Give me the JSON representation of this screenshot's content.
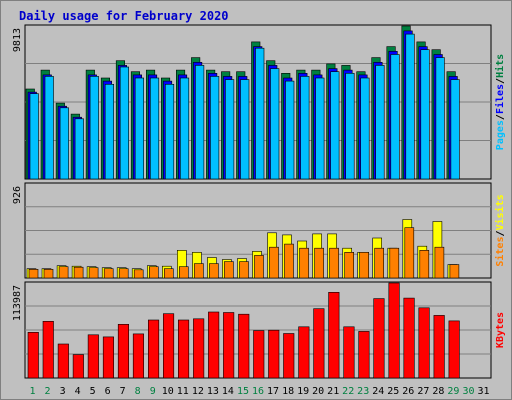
{
  "chart_data": {
    "type": "bar",
    "title": "Daily usage for February 2020",
    "days": [
      "1",
      "2",
      "3",
      "4",
      "5",
      "6",
      "7",
      "8",
      "9",
      "10",
      "11",
      "12",
      "13",
      "14",
      "15",
      "16",
      "17",
      "18",
      "19",
      "20",
      "21",
      "22",
      "23",
      "24",
      "25",
      "26",
      "27",
      "28",
      "29",
      "30",
      "31"
    ],
    "weekend_days": [
      "1",
      "2",
      "8",
      "9",
      "15",
      "16",
      "22",
      "23",
      "29",
      "30"
    ],
    "colors": {
      "hits": "#008040",
      "files": "#0000ff",
      "pages": "#00c0ff",
      "visits": "#ffff00",
      "sites": "#ff8000",
      "kbytes": "#ff0000",
      "weekday_label": "#000000",
      "weekend_label": "#008040",
      "title": "#0000cc"
    },
    "panels": [
      {
        "id": "top",
        "ymax_label": "9813",
        "ymax": 9813,
        "series": [
          {
            "name": "Hits",
            "color": "#008040",
            "values": [
              5800,
              7000,
              4900,
              4200,
              7000,
              6500,
              7600,
              6900,
              7000,
              6500,
              7000,
              7800,
              7000,
              6900,
              6900,
              8800,
              7600,
              6800,
              7000,
              7000,
              7400,
              7300,
              6900,
              7800,
              8500,
              9813,
              8800,
              8300,
              6900,
              null,
              null
            ]
          },
          {
            "name": "Files",
            "color": "#0000ff",
            "values": [
              5600,
              6700,
              4700,
              4000,
              6700,
              6300,
              7300,
              6700,
              6700,
              6300,
              6700,
              7500,
              6800,
              6600,
              6600,
              8500,
              7300,
              6500,
              6800,
              6700,
              7100,
              7000,
              6700,
              7500,
              8200,
              9500,
              8500,
              8000,
              6600,
              null,
              null
            ]
          },
          {
            "name": "Pages",
            "color": "#00c0ff",
            "values": [
              5500,
              6600,
              4600,
              3900,
              6600,
              6100,
              7200,
              6500,
              6500,
              6100,
              6500,
              7300,
              6600,
              6400,
              6400,
              8400,
              7100,
              6300,
              6600,
              6500,
              6900,
              6800,
              6500,
              7300,
              8000,
              9300,
              8300,
              7800,
              6400,
              null,
              null
            ]
          }
        ],
        "legend": [
          "Pages",
          "Files",
          "Hits"
        ]
      },
      {
        "id": "middle",
        "ymax_label": "926",
        "ymax": 926,
        "series": [
          {
            "name": "Visits",
            "color": "#ffff00",
            "values": [
              100,
              100,
              130,
              125,
              120,
              110,
              110,
              100,
              130,
              125,
              280,
              260,
              210,
              190,
              200,
              270,
              450,
              430,
              370,
              440,
              440,
              300,
              260,
              400,
              300,
              580,
              320,
              560,
              140,
              null,
              null
            ]
          },
          {
            "name": "Sites",
            "color": "#ff8000",
            "values": [
              95,
              95,
              120,
              115,
              110,
              100,
              100,
              90,
              120,
              100,
              120,
              150,
              150,
              170,
              170,
              230,
              310,
              340,
              300,
              300,
              300,
              260,
              260,
              300,
              300,
              500,
              280,
              310,
              140,
              null,
              null
            ]
          }
        ],
        "legend": [
          "Sites",
          "Visits"
        ]
      },
      {
        "id": "bottom",
        "ymax_label": "113987",
        "ymax": 113987,
        "series": [
          {
            "name": "KBytes",
            "color": "#ff0000",
            "values": [
              55500,
              68500,
              41500,
              29000,
              52500,
              50000,
              65000,
              53500,
              70000,
              77500,
              70000,
              71500,
              79500,
              79000,
              77000,
              57500,
              58000,
              54000,
              62000,
              83500,
              103000,
              62000,
              56500,
              95500,
              113987,
              96000,
              84500,
              75500,
              69000,
              null,
              null
            ]
          }
        ],
        "legend": [
          "KBytes"
        ]
      }
    ]
  }
}
